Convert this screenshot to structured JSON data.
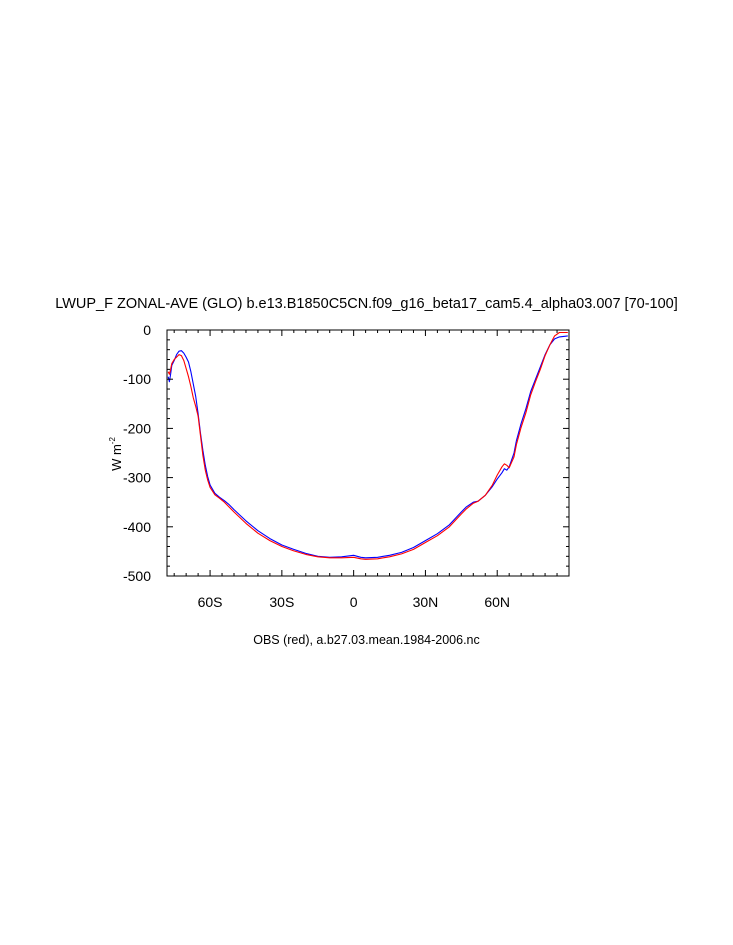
{
  "chart_data": {
    "type": "line",
    "title": "LWUP_F ZONAL-AVE (GLO) b.e13.B1850C5CN.f09_g16_beta17_cam5.4_alpha03.007 [70-100]",
    "subtitle": "OBS (red), a.b27.03.mean.1984-2006.nc",
    "ylabel": "W m",
    "ylabel_sup": "-2",
    "xlim": [
      -78,
      90
    ],
    "ylim": [
      -500,
      0
    ],
    "x_ticks": [
      {
        "value": -60,
        "label": "60S"
      },
      {
        "value": -30,
        "label": "30S"
      },
      {
        "value": 0,
        "label": "0"
      },
      {
        "value": 30,
        "label": "30N"
      },
      {
        "value": 60,
        "label": "60N"
      }
    ],
    "y_ticks": [
      {
        "value": 0,
        "label": "0"
      },
      {
        "value": -100,
        "label": "-100"
      },
      {
        "value": -200,
        "label": "-200"
      },
      {
        "value": -300,
        "label": "-300"
      },
      {
        "value": -400,
        "label": "-400"
      },
      {
        "value": -500,
        "label": "-500"
      }
    ],
    "grid": false,
    "series": [
      {
        "color": "#0000ff",
        "x": [
          -77.5,
          -77,
          -76.5,
          -76,
          -75,
          -74,
          -73,
          -72,
          -71,
          -70,
          -69,
          -68,
          -67,
          -66,
          -65,
          -64,
          -63,
          -62,
          -61,
          -60,
          -58,
          -56,
          -54,
          -52,
          -50,
          -45,
          -40,
          -35,
          -30,
          -25,
          -20,
          -15,
          -10,
          -5,
          0,
          3,
          5,
          10,
          15,
          20,
          25,
          30,
          35,
          40,
          45,
          47,
          50,
          52,
          55,
          58,
          60,
          62,
          63,
          64,
          65,
          67,
          68,
          70,
          72,
          74,
          76,
          78,
          80,
          82,
          84,
          86,
          89.5
        ],
        "values": [
          -95,
          -105,
          -90,
          -72,
          -62,
          -50,
          -43,
          -42,
          -47,
          -55,
          -65,
          -85,
          -110,
          -135,
          -170,
          -210,
          -245,
          -275,
          -298,
          -315,
          -332,
          -340,
          -347,
          -355,
          -365,
          -388,
          -408,
          -424,
          -437,
          -446,
          -454,
          -460,
          -462,
          -461,
          -458,
          -462,
          -463,
          -462,
          -458,
          -452,
          -442,
          -428,
          -414,
          -396,
          -370,
          -360,
          -350,
          -348,
          -336,
          -318,
          -303,
          -290,
          -282,
          -285,
          -278,
          -250,
          -225,
          -190,
          -160,
          -125,
          -100,
          -75,
          -50,
          -30,
          -18,
          -14,
          -12
        ]
      },
      {
        "color": "#ff0000",
        "x": [
          -77.5,
          -77,
          -76.5,
          -76,
          -75,
          -74,
          -73,
          -72,
          -71,
          -70,
          -69,
          -68,
          -67,
          -66,
          -65,
          -64,
          -63,
          -62,
          -61,
          -60,
          -58,
          -56,
          -54,
          -52,
          -50,
          -45,
          -40,
          -35,
          -30,
          -25,
          -20,
          -15,
          -10,
          -5,
          0,
          3,
          5,
          10,
          15,
          20,
          25,
          30,
          35,
          40,
          45,
          47,
          50,
          52,
          55,
          58,
          60,
          62,
          63,
          64,
          65,
          67,
          68,
          70,
          72,
          74,
          76,
          78,
          80,
          82,
          84,
          86,
          89.5
        ],
        "values": [
          -85,
          -90,
          -80,
          -68,
          -60,
          -55,
          -50,
          -52,
          -62,
          -78,
          -95,
          -115,
          -138,
          -155,
          -175,
          -215,
          -255,
          -285,
          -305,
          -320,
          -335,
          -342,
          -350,
          -360,
          -370,
          -393,
          -413,
          -428,
          -440,
          -449,
          -456,
          -461,
          -463,
          -463,
          -462,
          -465,
          -466,
          -465,
          -461,
          -455,
          -446,
          -432,
          -418,
          -400,
          -374,
          -364,
          -352,
          -348,
          -336,
          -315,
          -295,
          -278,
          -272,
          -275,
          -280,
          -258,
          -233,
          -198,
          -168,
          -132,
          -105,
          -80,
          -52,
          -30,
          -12,
          -5,
          -5
        ]
      }
    ]
  }
}
